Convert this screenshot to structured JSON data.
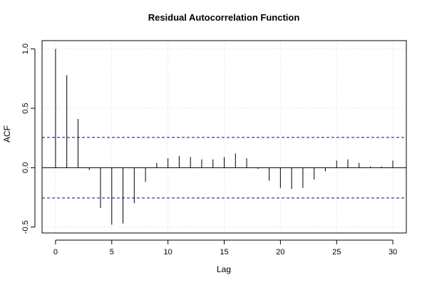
{
  "chart_data": {
    "type": "bar",
    "title": "Residual Autocorrelation Function",
    "xlabel": "Lag",
    "ylabel": "ACF",
    "xlim": [
      -1.2,
      31.2
    ],
    "ylim": [
      -0.55,
      1.07
    ],
    "x_ticks": [
      0,
      5,
      10,
      15,
      20,
      25,
      30
    ],
    "x_tick_labels": [
      "0",
      "5",
      "10",
      "15",
      "20",
      "25",
      "30"
    ],
    "y_ticks": [
      -0.5,
      0.0,
      0.5,
      1.0
    ],
    "y_tick_labels": [
      "-0.5",
      "0.0",
      "0.5",
      "1.0"
    ],
    "grid": true,
    "confidence_bounds": [
      0.255,
      -0.255
    ],
    "confidence_color": "#0000cc",
    "x": [
      0,
      1,
      2,
      3,
      4,
      5,
      6,
      7,
      8,
      9,
      10,
      11,
      12,
      13,
      14,
      15,
      16,
      17,
      18,
      19,
      20,
      21,
      22,
      23,
      24,
      25,
      26,
      27,
      28,
      29,
      30
    ],
    "values": [
      1.0,
      0.78,
      0.41,
      -0.02,
      -0.34,
      -0.48,
      -0.47,
      -0.3,
      -0.12,
      0.04,
      0.08,
      0.1,
      0.09,
      0.07,
      0.07,
      0.09,
      0.12,
      0.08,
      -0.01,
      -0.11,
      -0.17,
      -0.18,
      -0.17,
      -0.1,
      -0.03,
      0.06,
      0.07,
      0.04,
      0.01,
      0.01,
      0.06
    ]
  }
}
